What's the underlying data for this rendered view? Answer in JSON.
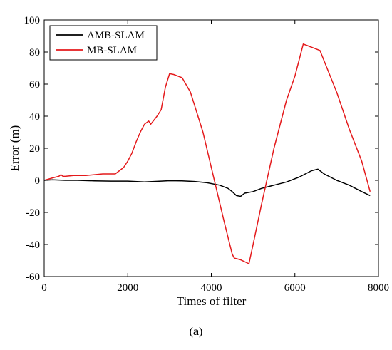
{
  "caption": {
    "open": "(",
    "letter": "a",
    "close": ")"
  },
  "chart_data": {
    "type": "line",
    "title": "",
    "xlabel": "Times of filter",
    "ylabel": "Error (m)",
    "xlim": [
      0,
      8000
    ],
    "ylim": [
      -60,
      100
    ],
    "x_ticks": [
      0,
      2000,
      4000,
      6000,
      8000
    ],
    "y_ticks": [
      -60,
      -40,
      -20,
      0,
      20,
      40,
      60,
      80,
      100
    ],
    "x_tick_labels": [
      "0",
      "2000",
      "4000",
      "6000",
      "8000"
    ],
    "y_tick_labels": [
      "-60",
      "-40",
      "-20",
      "0",
      "20",
      "40",
      "60",
      "80",
      "100"
    ],
    "grid": false,
    "legend_position": "top-left",
    "series": [
      {
        "name": "AMB-SLAM",
        "color": "#000000",
        "x": [
          0,
          200,
          500,
          800,
          1200,
          1600,
          2000,
          2400,
          2800,
          3000,
          3300,
          3600,
          3900,
          4200,
          4400,
          4500,
          4600,
          4700,
          4800,
          5000,
          5200,
          5500,
          5800,
          6100,
          6400,
          6550,
          6700,
          7000,
          7300,
          7600,
          7800
        ],
        "y": [
          0,
          0.3,
          0,
          0,
          -0.3,
          -0.5,
          -0.5,
          -1,
          -0.5,
          -0.2,
          -0.3,
          -0.7,
          -1.5,
          -3,
          -5,
          -7,
          -9.5,
          -10,
          -8,
          -7,
          -5,
          -3,
          -1,
          2,
          6,
          7,
          4,
          0,
          -3,
          -7,
          -9.5
        ]
      },
      {
        "name": "MB-SLAM",
        "color": "#e41a1c",
        "x": [
          0,
          200,
          350,
          400,
          450,
          500,
          700,
          1000,
          1200,
          1400,
          1700,
          1900,
          2000,
          2100,
          2200,
          2300,
          2400,
          2500,
          2550,
          2700,
          2750,
          2800,
          2900,
          3000,
          3100,
          3300,
          3500,
          3800,
          4000,
          4300,
          4500,
          4550,
          4700,
          4900,
          5000,
          5200,
          5500,
          5800,
          6000,
          6200,
          6300,
          6600,
          6800,
          7000,
          7300,
          7600,
          7800
        ],
        "y": [
          0,
          1.5,
          2.5,
          3.5,
          2.5,
          2.5,
          3,
          3,
          3.5,
          4,
          4,
          8,
          12,
          17,
          24,
          30,
          35,
          37,
          35,
          40,
          42,
          44,
          58,
          66.5,
          66,
          64,
          55,
          30,
          8,
          -25,
          -46,
          -48.5,
          -49.5,
          -52,
          -40,
          -15,
          20,
          50,
          65,
          85,
          84,
          81,
          68,
          55,
          32,
          12,
          -7
        ]
      }
    ]
  }
}
